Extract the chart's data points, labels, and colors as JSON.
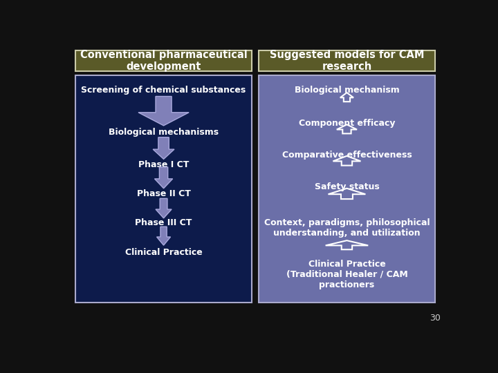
{
  "bg_color": "#111111",
  "left_panel_bg": "#0d1b4b",
  "right_panel_bg": "#6b6fa8",
  "header_bg": "#5a5a28",
  "header_text_color": "#ffffff",
  "panel_text_color": "#ffffff",
  "page_number": "30",
  "left_header": "Conventional pharmaceutical\ndevelopment",
  "right_header": "Suggested models for CAM\nresearch",
  "left_items": [
    "Screening of chemical substances",
    "Biological mechanisms",
    "Phase I CT",
    "Phase II CT",
    "Phase III CT",
    "Clinical Practice"
  ],
  "right_items": [
    "Biological mechanism",
    "Component efficacy",
    "Comparative effectiveness",
    "Safety status",
    "Context, paradigms, philosophical\nunderstanding, and utilization",
    "Clinical Practice\n(Traditional Healer / CAM\npractioners"
  ],
  "arrow_color_left": "#8080b8",
  "arrow_edge_color_left": "#aaaadd",
  "arrow_edge_color_right": "#ffffff"
}
